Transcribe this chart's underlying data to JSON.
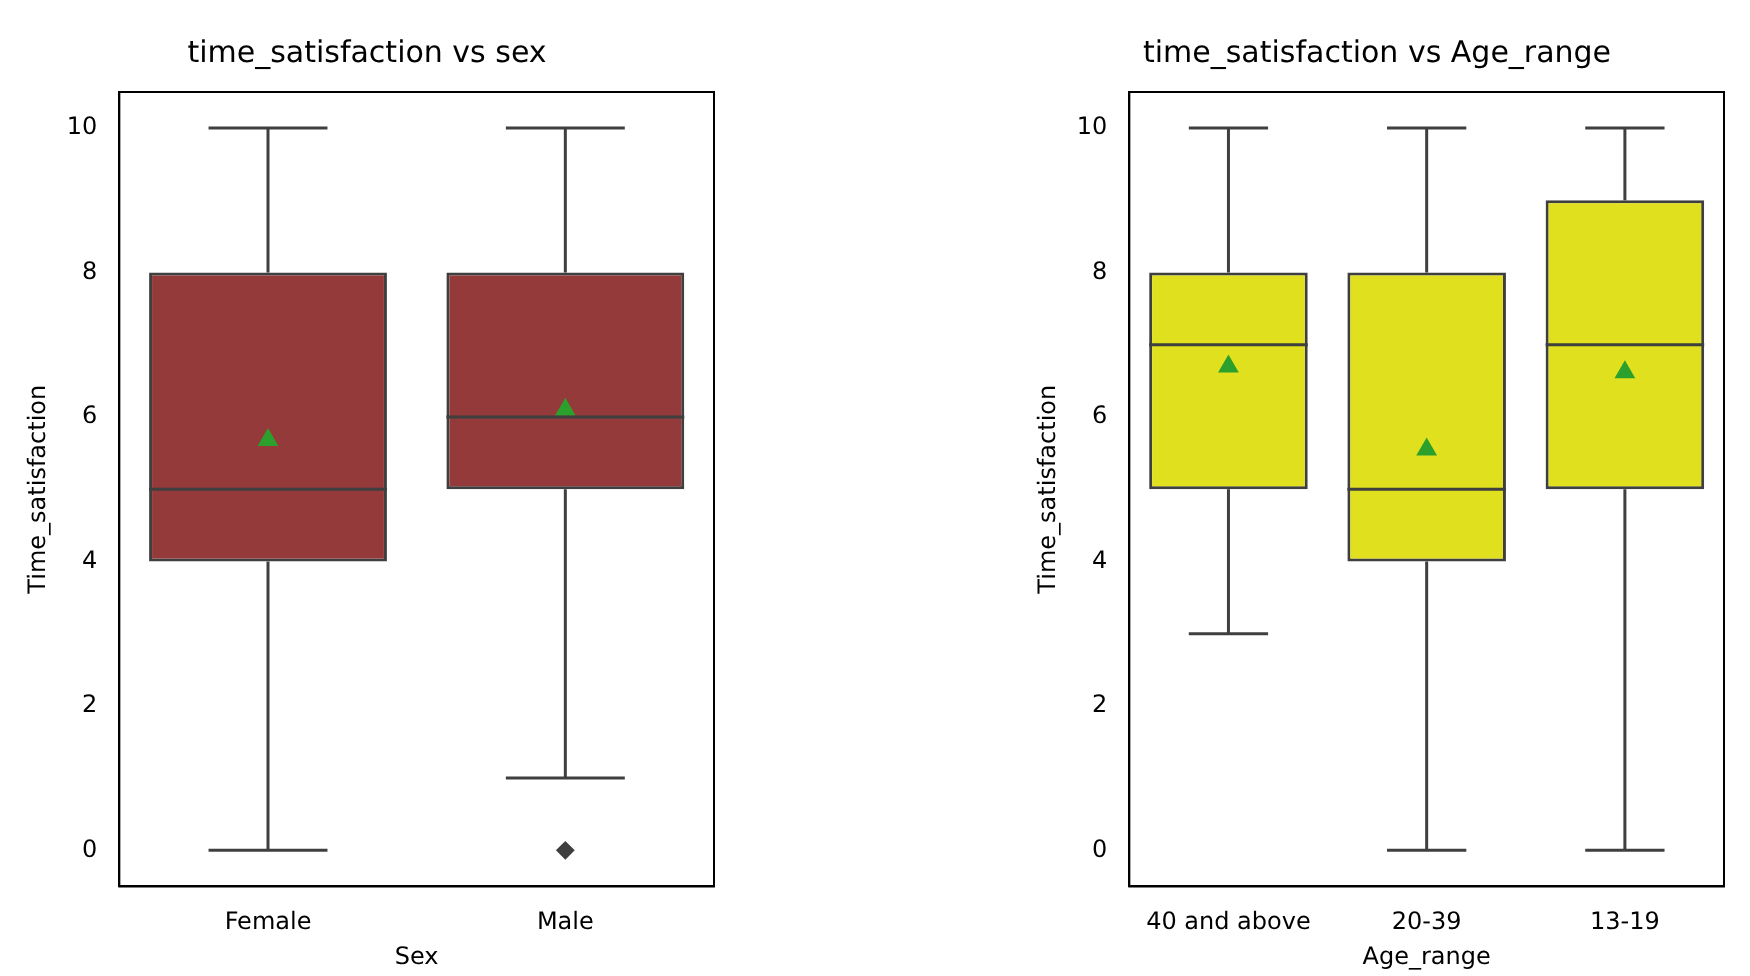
{
  "chart_data": [
    {
      "type": "box",
      "title": "time_satisfaction vs sex",
      "xlabel": "Sex",
      "ylabel": "Time_satisfaction",
      "categories": [
        "Female",
        "Male"
      ],
      "color": "#943a3a",
      "marker": "triangle",
      "ylim": [
        -0.5,
        10.5
      ],
      "yticks": [
        0,
        2,
        4,
        6,
        8,
        10
      ],
      "boxes": [
        {
          "low": 0,
          "q1": 4,
          "median": 5,
          "q3": 8,
          "high": 10,
          "mean": 5.68
        },
        {
          "low": 1,
          "q1": 5,
          "median": 6,
          "q3": 8,
          "high": 10,
          "mean": 6.1,
          "outliers": [
            0
          ]
        }
      ]
    },
    {
      "type": "box",
      "title": "time_satisfaction vs Age_range",
      "xlabel": "Age_range",
      "ylabel": "Time_satisfaction",
      "categories": [
        "40 and above",
        "20-39",
        "13-19"
      ],
      "color": "#e0e01e",
      "marker": "triangle",
      "ylim": [
        -0.5,
        10.5
      ],
      "yticks": [
        0,
        2,
        4,
        6,
        8,
        10
      ],
      "boxes": [
        {
          "low": 3,
          "q1": 5,
          "median": 7,
          "q3": 8,
          "high": 10,
          "mean": 6.7
        },
        {
          "low": 0,
          "q1": 4,
          "median": 5,
          "q3": 8,
          "high": 10,
          "mean": 5.55
        },
        {
          "low": 0,
          "q1": 5,
          "median": 7,
          "q3": 9,
          "high": 10,
          "mean": 6.62
        }
      ]
    }
  ]
}
